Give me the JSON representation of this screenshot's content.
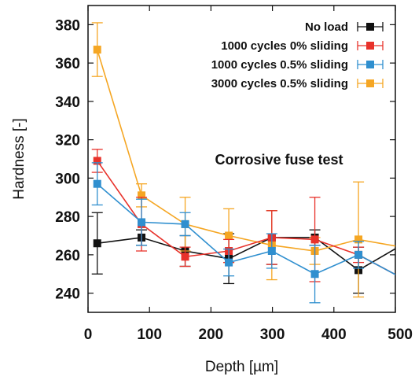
{
  "chart_data": {
    "type": "line",
    "title": "",
    "xlabel": "Depth [µm]",
    "ylabel": "Hardness [-]",
    "xlim": [
      0,
      500
    ],
    "ylim": [
      230,
      390
    ],
    "xticks": [
      0,
      100,
      200,
      300,
      400,
      500
    ],
    "yticks": [
      240,
      260,
      280,
      300,
      320,
      340,
      360,
      380
    ],
    "grid": false,
    "legend_position": "top-right",
    "annotation": "Corrosive fuse test",
    "x": [
      15,
      87,
      158,
      229,
      299,
      369,
      440,
      510
    ],
    "series": [
      {
        "name": "No load",
        "color": "#111111",
        "values": [
          266,
          269,
          262,
          258,
          269,
          269,
          252,
          265
        ],
        "error": [
          16,
          4,
          8,
          13,
          14,
          4,
          12,
          0
        ]
      },
      {
        "name": "1000 cycles 0% sliding",
        "color": "#e8322b",
        "values": [
          309,
          276,
          259,
          262,
          269,
          268,
          260,
          248
        ],
        "error": [
          6,
          14,
          5,
          6,
          14,
          22,
          4,
          0
        ]
      },
      {
        "name": "1000 cycles 0.5% sliding",
        "color": "#2f8fcf",
        "values": [
          297,
          277,
          276,
          256,
          262,
          250,
          260,
          248
        ],
        "error": [
          11,
          12,
          6,
          7,
          9,
          15,
          7,
          0
        ]
      },
      {
        "name": "3000 cycles 0.5% sliding",
        "color": "#f5a623",
        "values": [
          367,
          291,
          276,
          270,
          265,
          262,
          268,
          264
        ],
        "error": [
          14,
          6,
          14,
          14,
          18,
          7,
          30,
          0
        ]
      }
    ]
  }
}
